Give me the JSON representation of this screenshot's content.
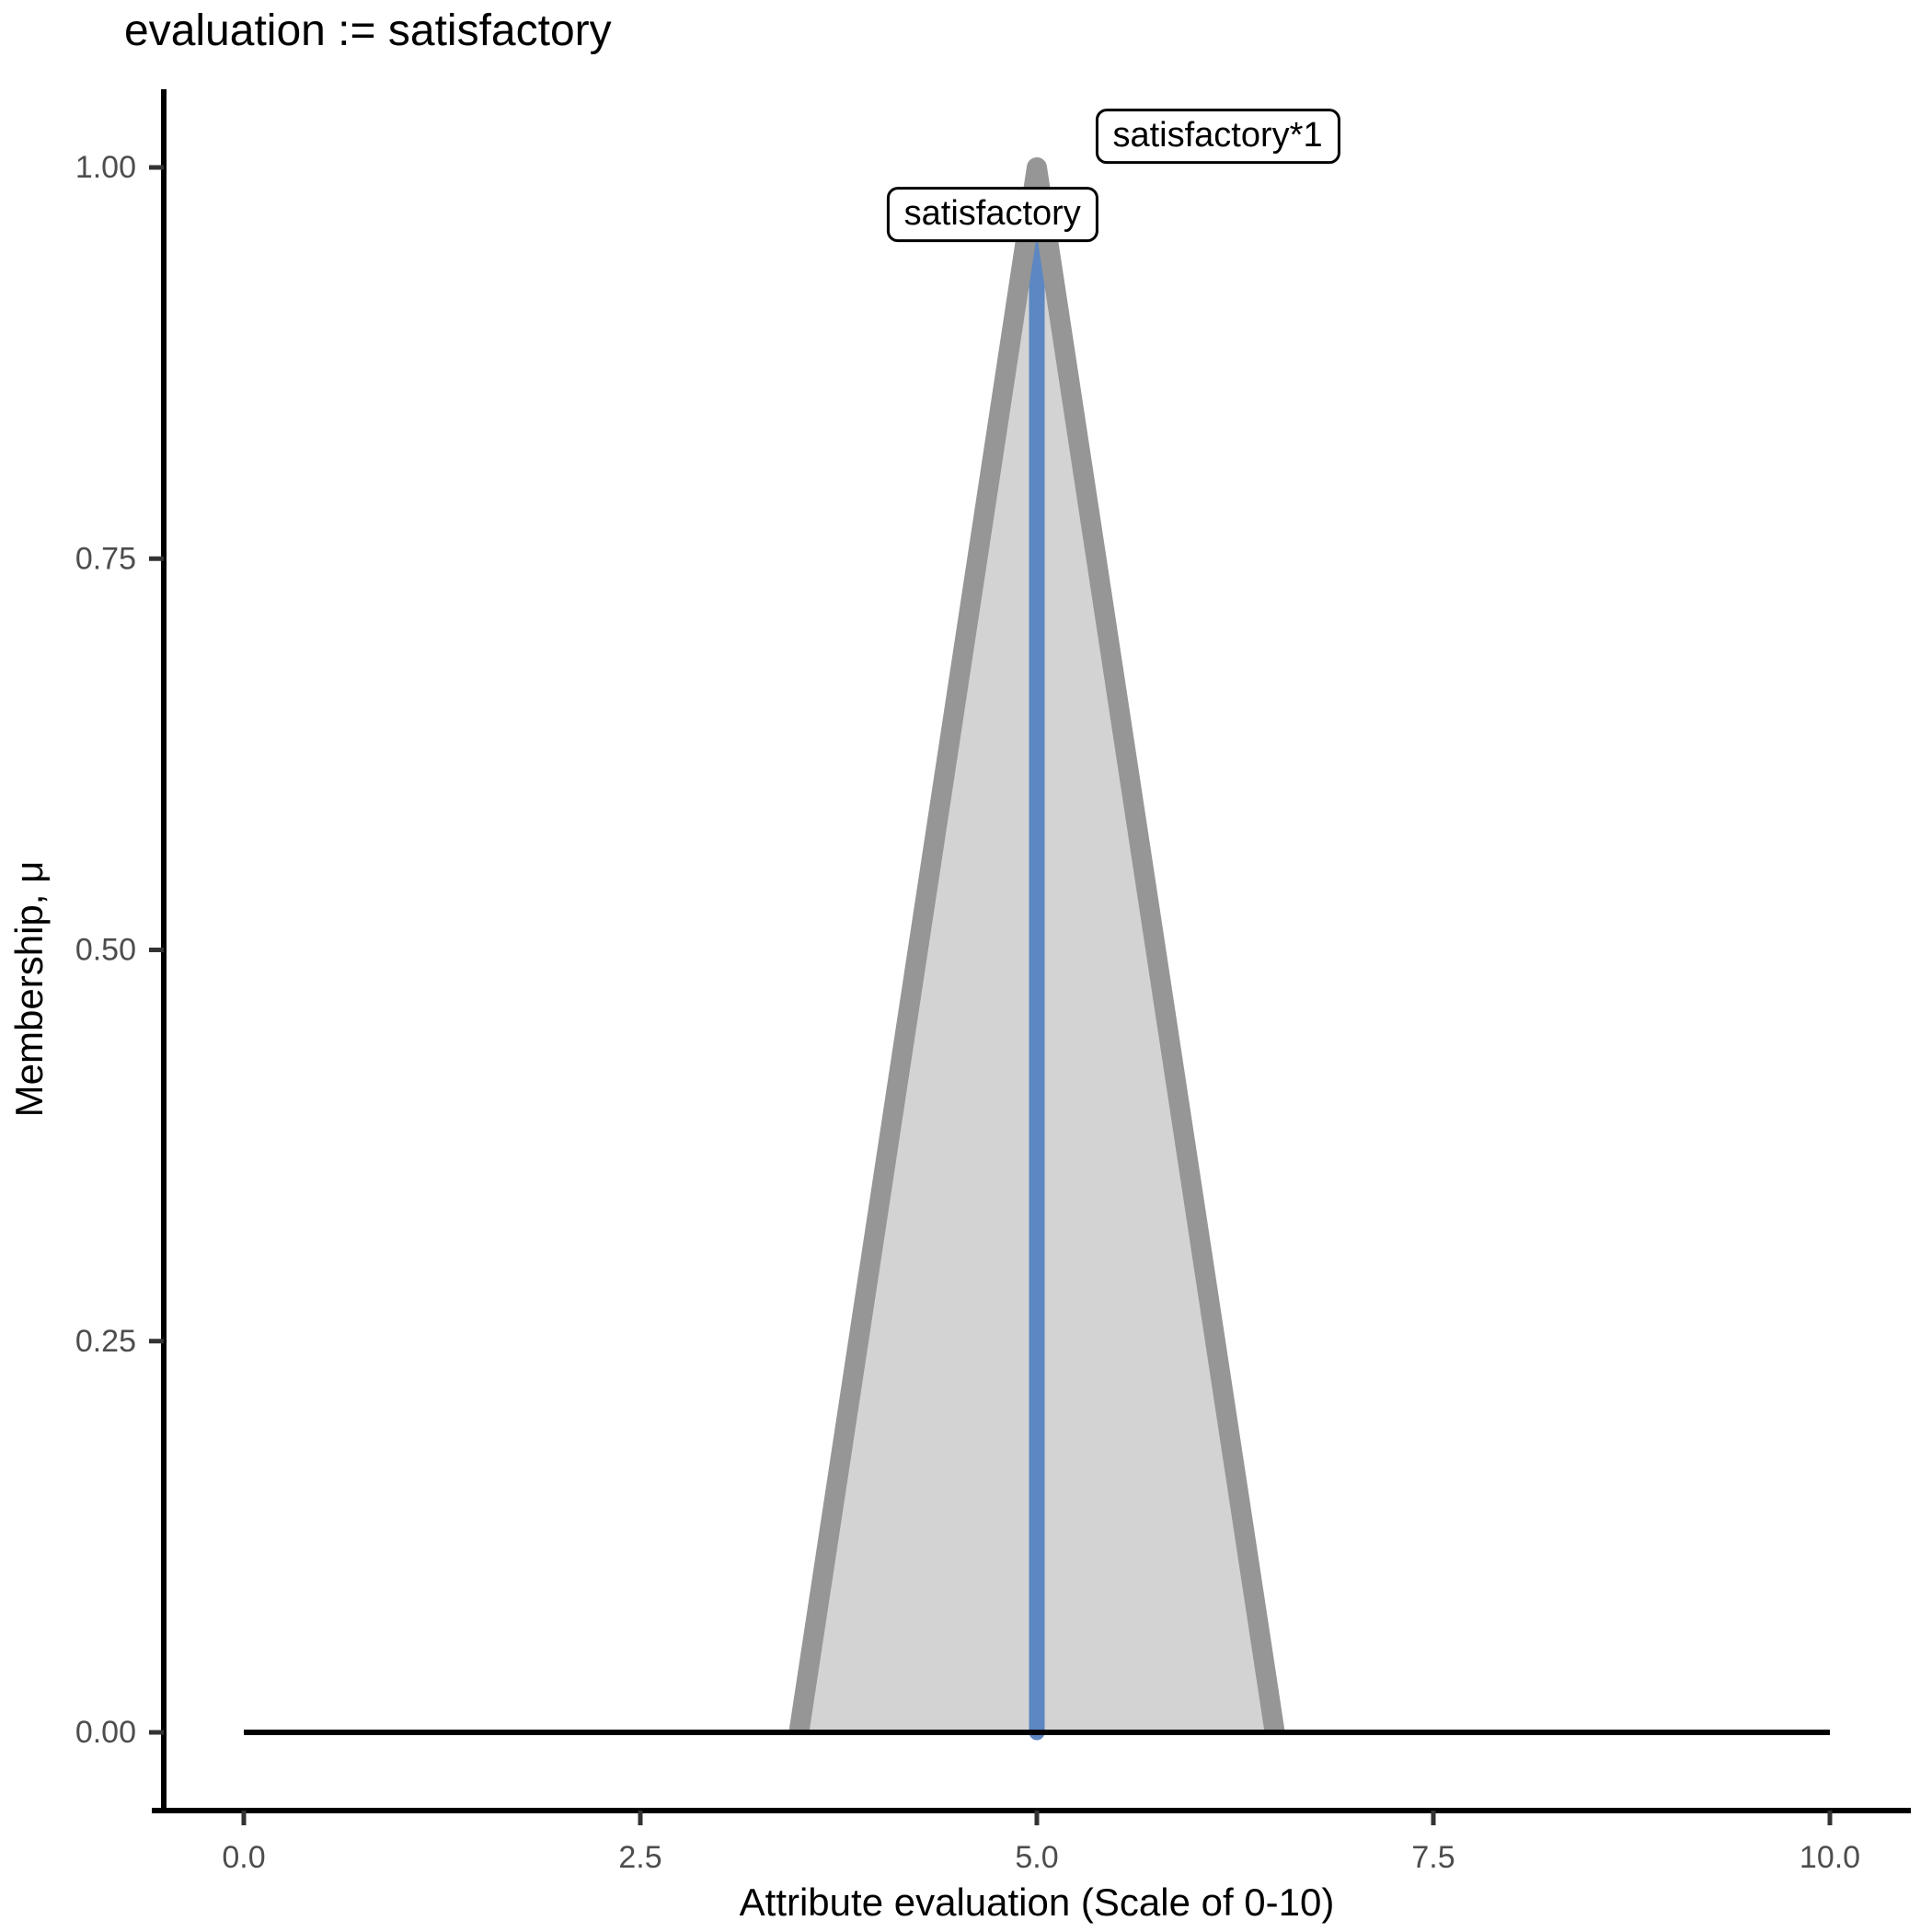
{
  "title": "evaluation := satisfactory",
  "chart_data": {
    "type": "area",
    "title": "evaluation := satisfactory",
    "xlabel": "Attribute evaluation (Scale of 0-10)",
    "ylabel": "Membership, μ",
    "xlim": [
      0,
      10
    ],
    "ylim": [
      0,
      1
    ],
    "grid": false,
    "legend": "none",
    "x_ticks": {
      "values": [
        0,
        2.5,
        5,
        7.5,
        10
      ],
      "labels": [
        "0.0",
        "2.5",
        "5.0",
        "7.5",
        "10.0"
      ]
    },
    "y_ticks": {
      "values": [
        0,
        0.25,
        0.5,
        0.75,
        1
      ],
      "labels": [
        "0.00",
        "0.25",
        "0.50",
        "0.75",
        "1.00"
      ]
    },
    "series": [
      {
        "name": "universe-baseline",
        "type": "line",
        "color": "#000000",
        "width": 6,
        "points": [
          [
            0,
            0
          ],
          [
            10,
            0
          ]
        ]
      },
      {
        "name": "satisfactory-membership",
        "type": "area",
        "fill": "#d3d3d3",
        "stroke": "#969696",
        "stroke_width": 22,
        "points": [
          [
            3.5,
            0
          ],
          [
            5,
            1
          ],
          [
            6.5,
            0
          ]
        ]
      },
      {
        "name": "defuzzified-result",
        "type": "vline",
        "color": "#5c87c2",
        "width": 17,
        "x": 5,
        "mu_from": 0,
        "mu_to": 0.985
      }
    ],
    "annotations": [
      {
        "id": "satisfactory-peak",
        "text": "satisfactory*1",
        "x": 6.14,
        "mu": 1.02
      },
      {
        "id": "satisfactory-set",
        "text": "satisfactory",
        "x": 4.72,
        "mu": 0.97
      }
    ],
    "colors": {
      "fill": "#d3d3d3",
      "outline": "#969696",
      "result_line": "#5c87c2",
      "axis": "#000000",
      "tick_text": "#4d4d4d",
      "title_text": "#000000"
    }
  }
}
